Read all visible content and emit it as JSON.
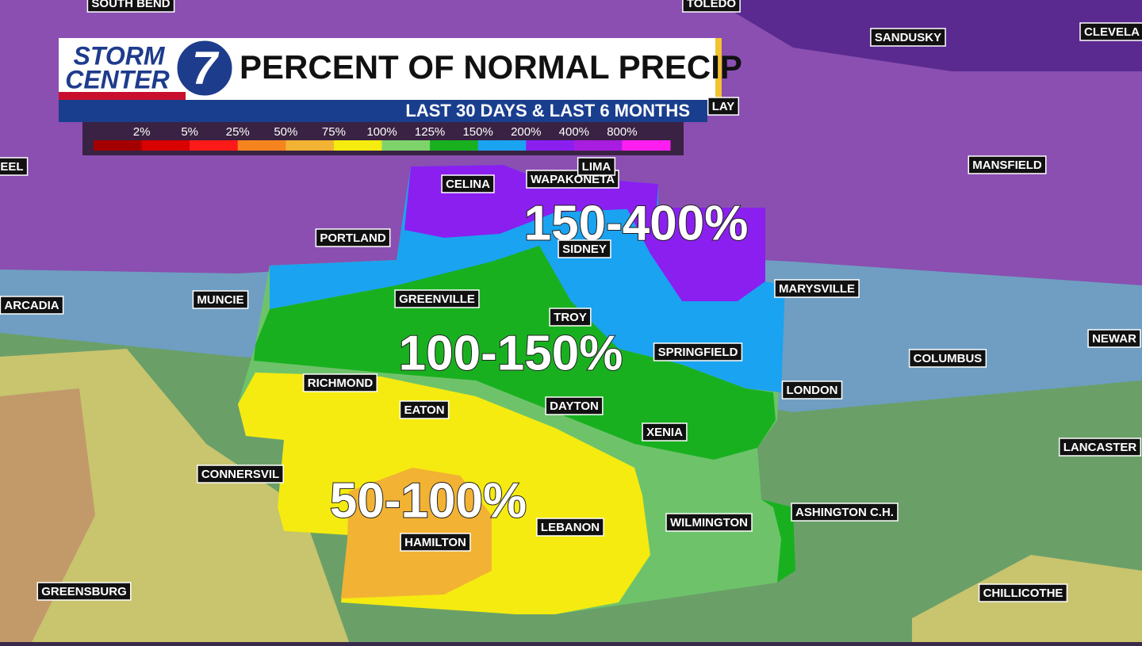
{
  "header": {
    "logo_line1": "STORM",
    "logo_line2": "CENTER",
    "logo_number": "7",
    "title": "PERCENT OF NORMAL PRECIP",
    "subtitle": "LAST 30 DAYS & LAST 6 MONTHS"
  },
  "legend": {
    "labels": [
      "2%",
      "5%",
      "25%",
      "50%",
      "75%",
      "100%",
      "125%",
      "150%",
      "200%",
      "400%",
      "800%"
    ],
    "colors": [
      "#a50000",
      "#d90000",
      "#ff1a1a",
      "#f5841f",
      "#f2b233",
      "#f5eb10",
      "#7ed36b",
      "#19b020",
      "#1aa3f0",
      "#8a1ff0",
      "#a81ee0",
      "#ff1ef0"
    ]
  },
  "region_labels": [
    "150-400%",
    "100-150%",
    "50-100%"
  ],
  "cities": [
    "SOUTH BEND",
    "TOLEDO",
    "SANDUSKY",
    "CLEVELA",
    "LAY",
    "EEL",
    "CELINA",
    "WAPAKONETA",
    "LIMA",
    "MANSFIELD",
    "PORTLAND",
    "SIDNEY",
    "MARYSVILLE",
    "ARCADIA",
    "MUNCIE",
    "GREENVILLE",
    "TROY",
    "NEWAR",
    "SPRINGFIELD",
    "COLUMBUS",
    "RICHMOND",
    "LONDON",
    "EATON",
    "DAYTON",
    "XENIA",
    "LANCASTER",
    "CONNERSVIL",
    "ASHINGTON C.H.",
    "WILMINGTON",
    "LEBANON",
    "HAMILTON",
    "GREENSBURG",
    "CHILLICOTHE"
  ]
}
